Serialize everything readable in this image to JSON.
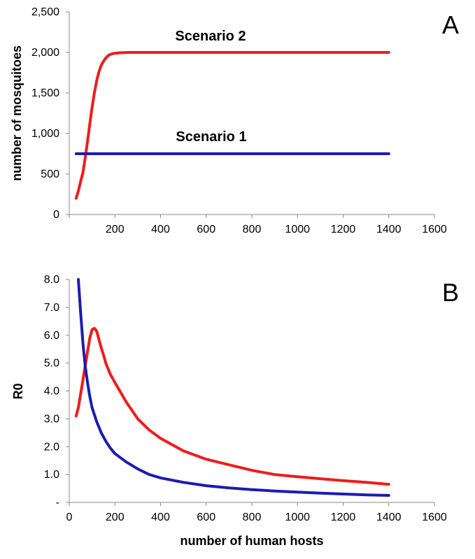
{
  "chart_data": [
    {
      "panel_label": "A",
      "type": "line",
      "ylabel": "number of mosquitoes",
      "xlabel": "",
      "xlim": [
        0,
        1600
      ],
      "ylim": [
        0,
        2500
      ],
      "x_ticks": [
        "200",
        "400",
        "600",
        "800",
        "1000",
        "1200",
        "1400",
        "1600"
      ],
      "y_ticks": [
        "0",
        "500",
        "1,000",
        "1,500",
        "2,000",
        "2,500"
      ],
      "grid": false,
      "annotations": [
        "Scenario 2",
        "Scenario 1"
      ],
      "series": [
        {
          "name": "Scenario 2",
          "color": "#ee1c1c",
          "x": [
            30,
            40,
            50,
            60,
            70,
            80,
            90,
            100,
            110,
            120,
            130,
            140,
            150,
            160,
            170,
            180,
            190,
            200,
            220,
            240,
            260,
            300,
            400,
            600,
            800,
            1000,
            1200,
            1400
          ],
          "y": [
            200,
            290,
            410,
            520,
            700,
            900,
            1120,
            1320,
            1500,
            1650,
            1760,
            1840,
            1890,
            1930,
            1960,
            1975,
            1985,
            1990,
            1995,
            1998,
            2000,
            2000,
            2000,
            2000,
            2000,
            2000,
            2000,
            2000
          ]
        },
        {
          "name": "Scenario 1",
          "color": "#1c1cb0",
          "x": [
            30,
            200,
            400,
            600,
            800,
            1000,
            1200,
            1400
          ],
          "y": [
            750,
            750,
            750,
            750,
            750,
            750,
            750,
            750
          ]
        }
      ]
    },
    {
      "panel_label": "B",
      "type": "line",
      "ylabel": "R0",
      "xlabel": "number of human hosts",
      "xlim": [
        0,
        1600
      ],
      "ylim": [
        0,
        8
      ],
      "x_ticks": [
        "0",
        "200",
        "400",
        "600",
        "800",
        "1000",
        "1200",
        "1400",
        "1600"
      ],
      "y_ticks": [
        "-",
        "1.0",
        "2.0",
        "3.0",
        "4.0",
        "5.0",
        "6.0",
        "7.0",
        "8.0"
      ],
      "grid": false,
      "series": [
        {
          "name": "Scenario 2",
          "color": "#ee1c1c",
          "x": [
            30,
            40,
            50,
            60,
            70,
            80,
            90,
            100,
            110,
            120,
            130,
            140,
            150,
            160,
            180,
            200,
            250,
            300,
            350,
            400,
            500,
            600,
            700,
            800,
            900,
            1000,
            1100,
            1200,
            1300,
            1400
          ],
          "y": [
            3.1,
            3.4,
            3.9,
            4.4,
            4.9,
            5.4,
            5.9,
            6.2,
            6.25,
            6.15,
            5.85,
            5.55,
            5.3,
            5.0,
            4.6,
            4.3,
            3.6,
            3.0,
            2.6,
            2.3,
            1.85,
            1.55,
            1.35,
            1.15,
            1.0,
            0.92,
            0.85,
            0.78,
            0.72,
            0.65
          ]
        },
        {
          "name": "Scenario 1",
          "color": "#1c1cb0",
          "x": [
            40,
            50,
            60,
            70,
            80,
            90,
            100,
            110,
            120,
            140,
            160,
            180,
            200,
            250,
            300,
            350,
            400,
            500,
            600,
            700,
            800,
            900,
            1000,
            1100,
            1200,
            1300,
            1400
          ],
          "y": [
            8.0,
            6.8,
            5.7,
            4.9,
            4.3,
            3.8,
            3.4,
            3.15,
            2.9,
            2.5,
            2.2,
            1.95,
            1.75,
            1.45,
            1.2,
            1.0,
            0.88,
            0.72,
            0.6,
            0.52,
            0.46,
            0.41,
            0.37,
            0.33,
            0.3,
            0.27,
            0.25
          ]
        }
      ]
    }
  ]
}
